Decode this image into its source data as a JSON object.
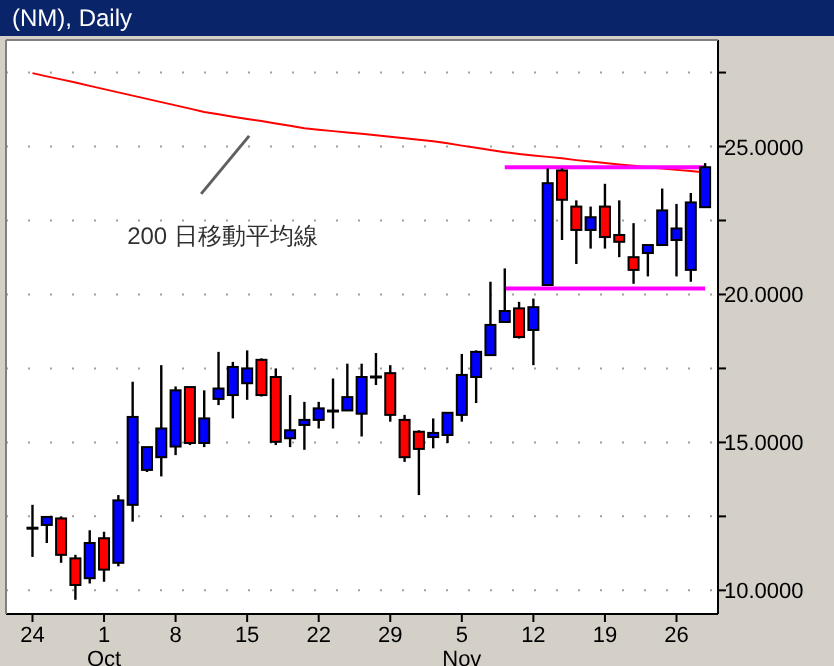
{
  "chart_data": {
    "type": "candlestick",
    "title": "(NM), Daily",
    "categories": [
      "24",
      null,
      null,
      null,
      null,
      "1\nOct",
      null,
      null,
      null,
      null,
      "8",
      null,
      null,
      null,
      null,
      "15",
      null,
      null,
      null,
      null,
      "22",
      null,
      null,
      null,
      null,
      "29",
      null,
      null,
      null,
      null,
      "5\nNov",
      null,
      null,
      null,
      null,
      "12",
      null,
      null,
      null,
      null,
      "19",
      null,
      null,
      null,
      null,
      "26",
      null,
      null
    ],
    "ohlc": [
      [
        12.1,
        12.89,
        11.13,
        12.1
      ],
      [
        12.21,
        12.5,
        11.6,
        12.48
      ],
      [
        12.43,
        12.5,
        10.93,
        11.2
      ],
      [
        11.08,
        11.2,
        9.68,
        10.18
      ],
      [
        10.41,
        12.03,
        10.23,
        11.6
      ],
      [
        11.76,
        11.98,
        10.29,
        10.7
      ],
      [
        10.93,
        13.22,
        10.81,
        13.04
      ],
      [
        12.89,
        17.05,
        12.32,
        15.86
      ],
      [
        14.07,
        14.84,
        14.0,
        14.84
      ],
      [
        14.5,
        17.61,
        13.85,
        15.47
      ],
      [
        14.86,
        16.89,
        14.57,
        16.76
      ],
      [
        16.87,
        16.87,
        14.91,
        14.98
      ],
      [
        14.98,
        16.76,
        14.84,
        15.81
      ],
      [
        16.47,
        18.06,
        16.26,
        16.82
      ],
      [
        16.6,
        17.72,
        15.81,
        17.55
      ],
      [
        17.0,
        18.11,
        16.44,
        17.5
      ],
      [
        17.79,
        17.84,
        16.55,
        16.6
      ],
      [
        17.21,
        17.5,
        14.91,
        15.02
      ],
      [
        15.14,
        16.6,
        14.84,
        15.41
      ],
      [
        15.59,
        16.37,
        14.75,
        15.76
      ],
      [
        15.76,
        16.37,
        15.47,
        16.15
      ],
      [
        16.06,
        17.16,
        15.47,
        16.06
      ],
      [
        16.08,
        17.66,
        16.08,
        16.53
      ],
      [
        15.97,
        17.66,
        15.2,
        17.21
      ],
      [
        17.21,
        18.02,
        16.94,
        17.21
      ],
      [
        17.34,
        17.61,
        15.7,
        15.93
      ],
      [
        15.76,
        15.93,
        14.34,
        14.5
      ],
      [
        15.36,
        15.41,
        13.22,
        14.78
      ],
      [
        15.18,
        15.81,
        14.8,
        15.32
      ],
      [
        15.25,
        16.0,
        14.98,
        16.0
      ],
      [
        15.93,
        17.99,
        15.7,
        17.28
      ],
      [
        17.21,
        18.11,
        16.33,
        18.06
      ],
      [
        17.95,
        20.43,
        17.95,
        18.97
      ],
      [
        19.07,
        20.88,
        19.07,
        19.44
      ],
      [
        19.53,
        19.75,
        18.51,
        18.56
      ],
      [
        18.8,
        19.86,
        17.61,
        19.57
      ],
      [
        20.32,
        24.26,
        20.32,
        23.76
      ],
      [
        24.19,
        24.26,
        21.84,
        23.2
      ],
      [
        22.97,
        23.18,
        21.03,
        22.18
      ],
      [
        22.18,
        22.97,
        21.55,
        22.61
      ],
      [
        22.97,
        23.74,
        21.55,
        21.94
      ],
      [
        22.01,
        23.18,
        21.26,
        21.78
      ],
      [
        21.26,
        22.41,
        20.36,
        20.83
      ],
      [
        21.4,
        21.67,
        20.61,
        21.67
      ],
      [
        21.67,
        23.58,
        21.67,
        22.84
      ],
      [
        21.84,
        23.06,
        20.61,
        22.23
      ],
      [
        20.83,
        23.43,
        20.43,
        23.11
      ],
      [
        22.95,
        24.44,
        22.95,
        24.3
      ]
    ],
    "colors": [
      "#000000",
      "#0000ff",
      "#ff0000",
      "#ff0000",
      "#0000ff",
      "#ff0000",
      "#0000ff",
      "#0000ff",
      "#0000ff",
      "#0000ff",
      "#0000ff",
      "#ff0000",
      "#0000ff",
      "#0000ff",
      "#0000ff",
      "#0000ff",
      "#ff0000",
      "#ff0000",
      "#0000ff",
      "#0000ff",
      "#0000ff",
      "#000000",
      "#0000ff",
      "#0000ff",
      "#000000",
      "#ff0000",
      "#ff0000",
      "#ff0000",
      "#0000ff",
      "#0000ff",
      "#0000ff",
      "#0000ff",
      "#0000ff",
      "#0000ff",
      "#ff0000",
      "#0000ff",
      "#0000ff",
      "#ff0000",
      "#ff0000",
      "#0000ff",
      "#ff0000",
      "#ff0000",
      "#ff0000",
      "#0000ff",
      "#0000ff",
      "#0000ff",
      "#0000ff",
      "#0000ff"
    ],
    "series": [
      {
        "type": "line",
        "color": "#ff0000",
        "values": [
          27.48,
          27.37,
          27.27,
          27.16,
          27.05,
          26.94,
          26.83,
          26.72,
          26.61,
          26.5,
          26.39,
          26.28,
          26.17,
          26.09,
          26.01,
          25.93,
          25.86,
          25.78,
          25.7,
          25.62,
          25.57,
          25.52,
          25.47,
          25.43,
          25.38,
          25.33,
          25.28,
          25.23,
          25.18,
          25.11,
          25.03,
          24.96,
          24.88,
          24.81,
          24.75,
          24.7,
          24.65,
          24.6,
          24.54,
          24.49,
          24.44,
          24.39,
          24.35,
          24.3,
          24.26,
          24.21,
          24.17,
          24.12
        ]
      },
      {
        "type": "line",
        "color": "#ff00ff",
        "values": [
          null,
          null,
          null,
          null,
          null,
          null,
          null,
          null,
          null,
          null,
          null,
          null,
          null,
          null,
          null,
          null,
          null,
          null,
          null,
          null,
          null,
          null,
          null,
          null,
          null,
          null,
          null,
          null,
          null,
          null,
          null,
          null,
          null,
          24.3,
          24.3,
          24.3,
          24.3,
          24.3,
          24.3,
          24.3,
          24.3,
          24.3,
          24.3,
          24.3,
          24.3,
          24.3,
          24.3,
          24.3
        ]
      },
      {
        "type": "line",
        "color": "#ff00ff",
        "values": [
          null,
          null,
          null,
          null,
          null,
          null,
          null,
          null,
          null,
          null,
          null,
          null,
          null,
          null,
          null,
          null,
          null,
          null,
          null,
          null,
          null,
          null,
          null,
          null,
          null,
          null,
          null,
          null,
          null,
          null,
          null,
          null,
          null,
          20.2,
          20.2,
          20.2,
          20.2,
          20.2,
          20.2,
          20.2,
          20.2,
          20.2,
          20.2,
          20.2,
          20.2,
          20.2,
          20.2,
          20.2
        ]
      }
    ],
    "ylim": [
      9.2,
      28.6
    ],
    "yticks": [
      {
        "value": 10,
        "label": "10.0000"
      },
      {
        "value": 12.5,
        "label": null
      },
      {
        "value": 15,
        "label": "15.0000"
      },
      {
        "value": 17.5,
        "label": null
      },
      {
        "value": 20,
        "label": "20.0000"
      },
      {
        "value": 22.5,
        "label": null
      },
      {
        "value": 25,
        "label": "25.0000"
      },
      {
        "value": 27.5,
        "label": null
      }
    ],
    "grid": "y",
    "annotations": [
      {
        "text": "200 日移動平均線",
        "x": "15",
        "y": 25.9
      }
    ]
  }
}
